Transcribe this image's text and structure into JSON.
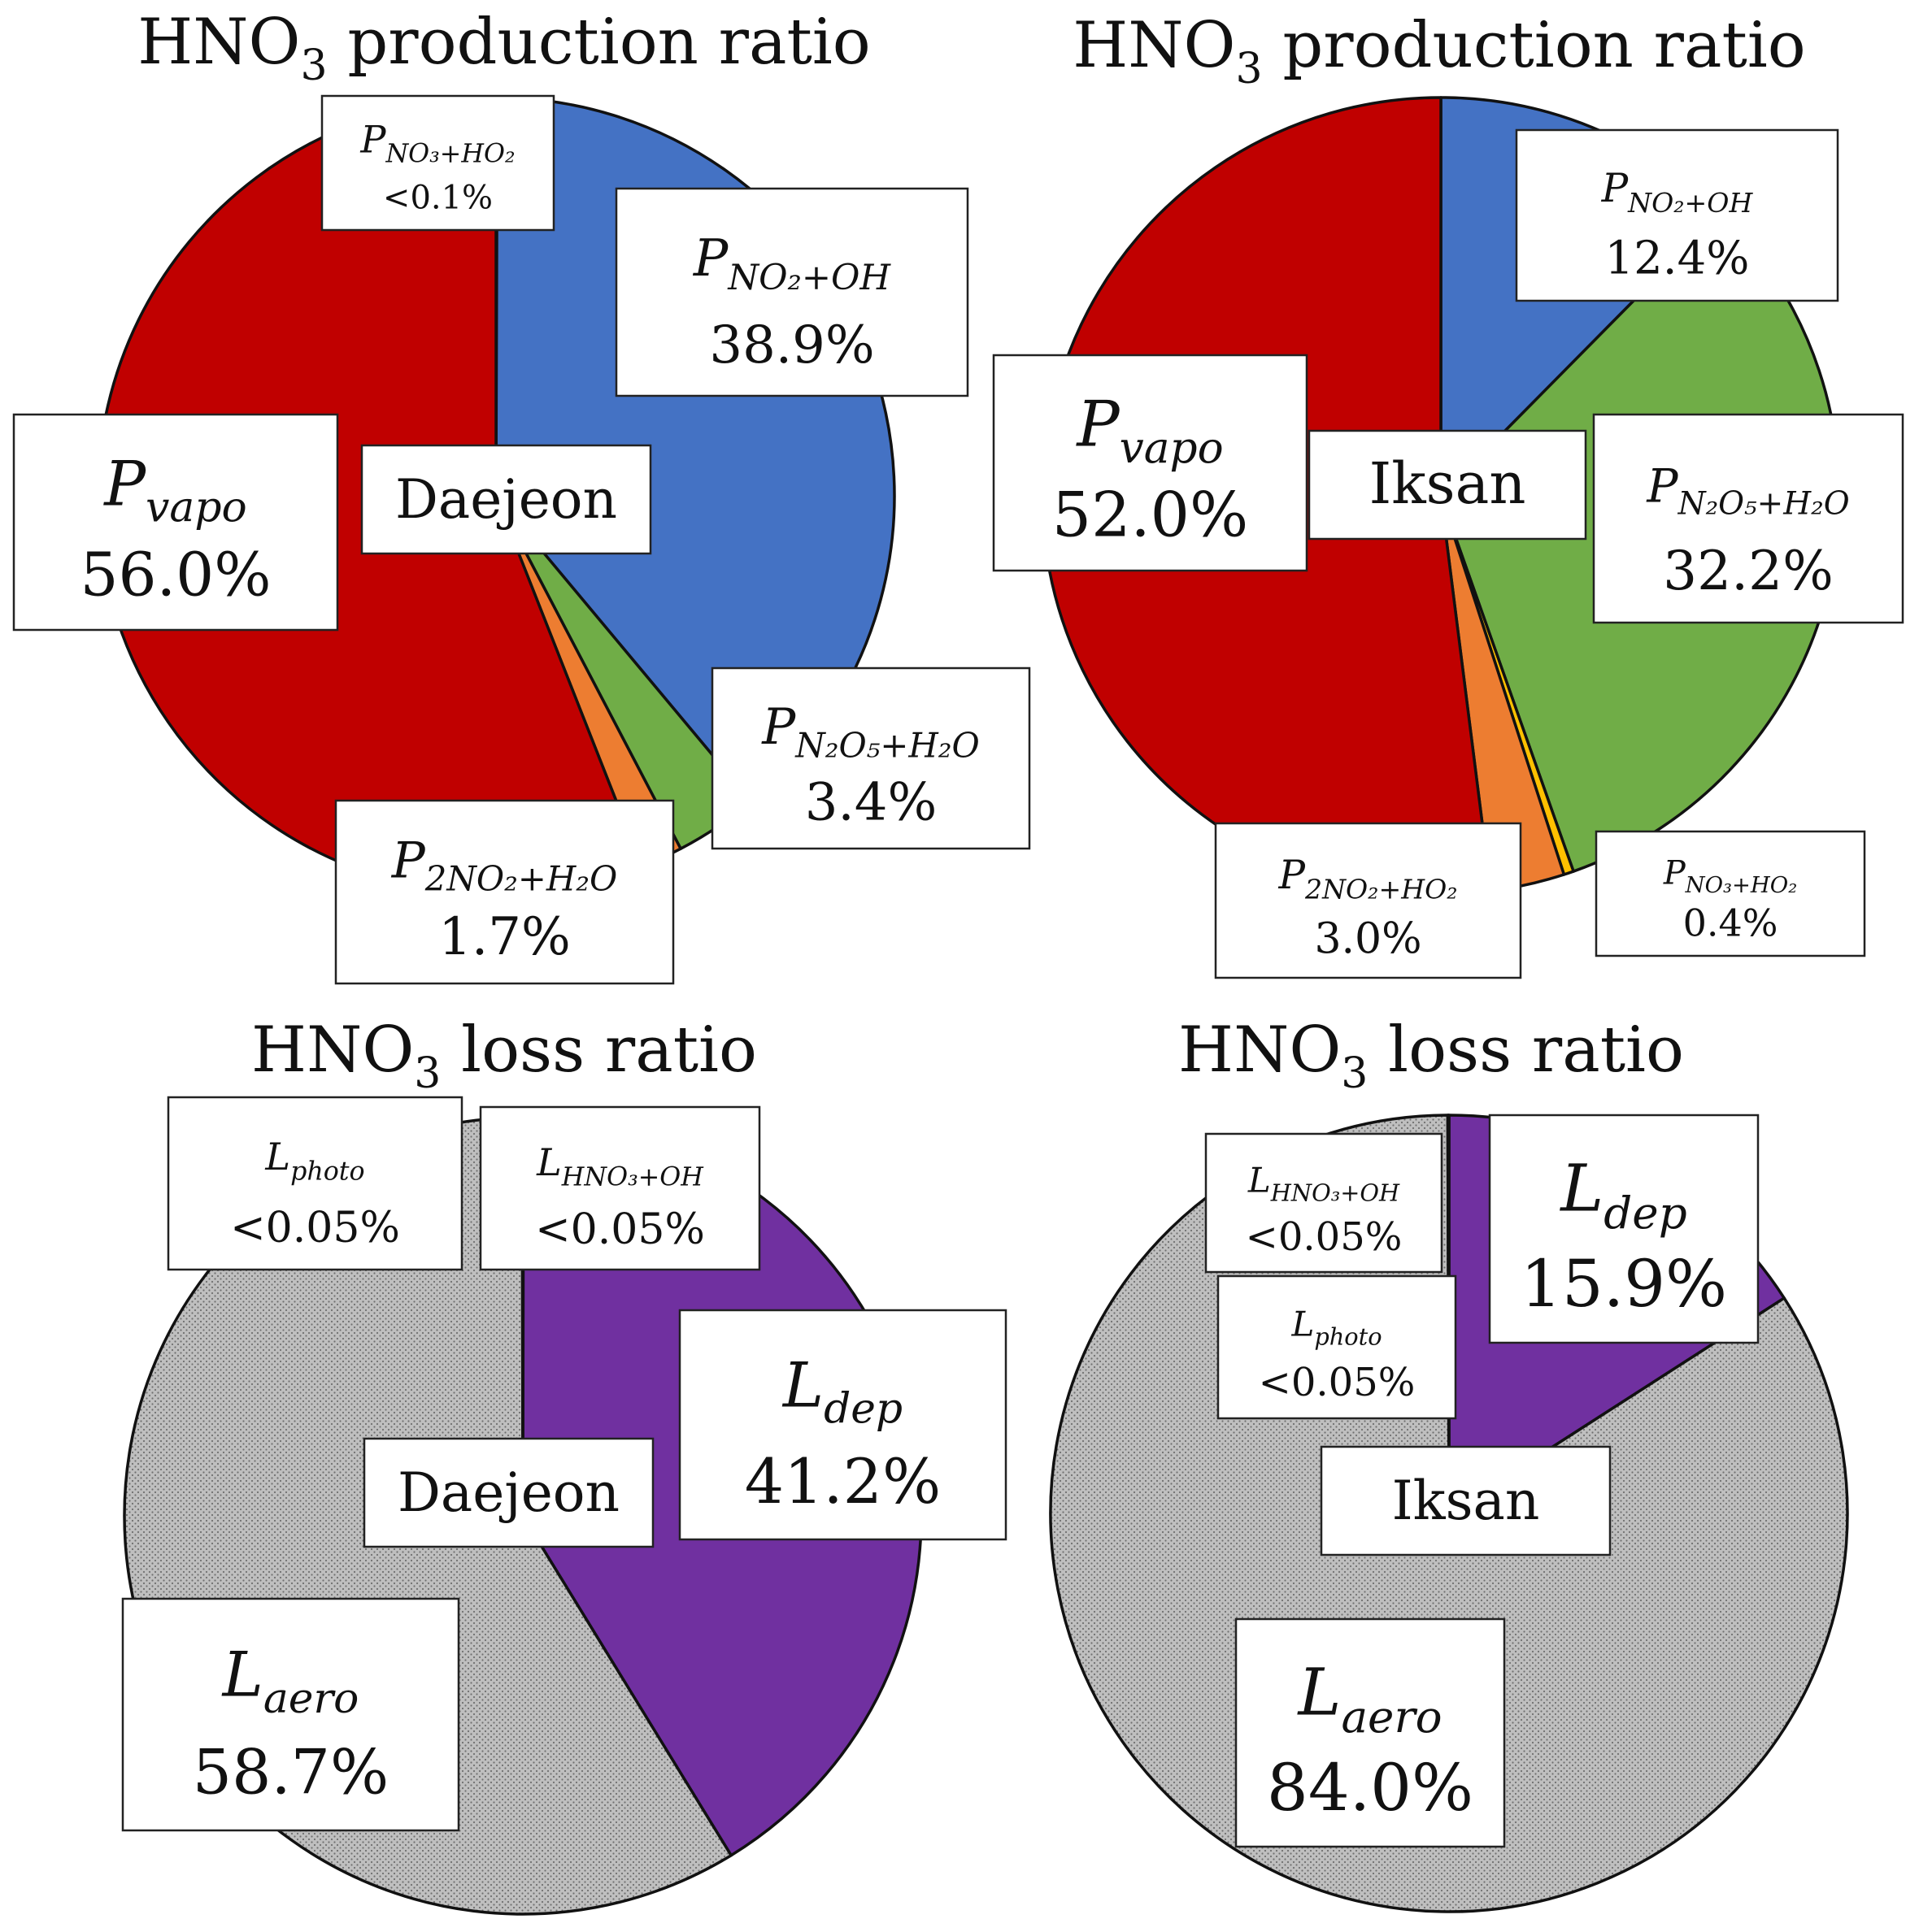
{
  "colors": {
    "vapo": "#C00000",
    "no2_oh": "#4472C4",
    "n2o5_h2o": "#70AD47",
    "2no2_h2o": "#ED7D31",
    "no3_ho2": "#FFC000",
    "dep": "#7030A0",
    "aero": "#BFBFBF",
    "outline": "#111111"
  },
  "chart_data": [
    {
      "id": "prod-daejeon",
      "type": "pie",
      "title": "HNO",
      "title_sub": "3",
      "title_rest": " production ratio",
      "site": "Daejeon",
      "slices": [
        {
          "key": "no3_ho2",
          "label_main": "P",
          "label_sub": "NO₃+HO₂",
          "value_text": "<0.1%",
          "value": 0.05,
          "color_key": "no3_ho2"
        },
        {
          "key": "no2_oh",
          "label_main": "P",
          "label_sub": "NO₂+OH",
          "value_text": "38.9%",
          "value": 38.9,
          "color_key": "no2_oh"
        },
        {
          "key": "n2o5_h2o",
          "label_main": "P",
          "label_sub": "N₂O₅+H₂O",
          "value_text": "3.4%",
          "value": 3.4,
          "color_key": "n2o5_h2o"
        },
        {
          "key": "2no2_h2o",
          "label_main": "P",
          "label_sub": "2NO₂+H₂O",
          "value_text": "1.7%",
          "value": 1.7,
          "color_key": "2no2_h2o"
        },
        {
          "key": "vapo",
          "label_main": "P",
          "label_sub": "vapo",
          "value_text": "56.0%",
          "value": 56.0,
          "color_key": "vapo"
        }
      ]
    },
    {
      "id": "prod-iksan",
      "type": "pie",
      "title": "HNO",
      "title_sub": "3",
      "title_rest": " production ratio",
      "site": "Iksan",
      "slices": [
        {
          "key": "no2_oh",
          "label_main": "P",
          "label_sub": "NO₂+OH",
          "value_text": "12.4%",
          "value": 12.4,
          "color_key": "no2_oh"
        },
        {
          "key": "n2o5_h2o",
          "label_main": "P",
          "label_sub": "N₂O₅+H₂O",
          "value_text": "32.2%",
          "value": 32.2,
          "color_key": "n2o5_h2o"
        },
        {
          "key": "no3_ho2",
          "label_main": "P",
          "label_sub": "NO₃+HO₂",
          "value_text": "0.4%",
          "value": 0.4,
          "color_key": "no3_ho2"
        },
        {
          "key": "2no2_ho2",
          "label_main": "P",
          "label_sub": "2NO₂+HO₂",
          "value_text": "3.0%",
          "value": 3.0,
          "color_key": "2no2_h2o"
        },
        {
          "key": "vapo",
          "label_main": "P",
          "label_sub": "vapo",
          "value_text": "52.0%",
          "value": 52.0,
          "color_key": "vapo"
        }
      ]
    },
    {
      "id": "loss-daejeon",
      "type": "pie",
      "title": "HNO",
      "title_sub": "3",
      "title_rest": " loss ratio",
      "site": "Daejeon",
      "slices": [
        {
          "key": "hno3_oh",
          "label_main": "L",
          "label_sub": "HNO₃+OH",
          "value_text": "<0.05%",
          "value": 0.025,
          "color_key": "dep"
        },
        {
          "key": "dep",
          "label_main": "L",
          "label_sub": "dep",
          "value_text": "41.2%",
          "value": 41.2,
          "color_key": "dep"
        },
        {
          "key": "aero",
          "label_main": "L",
          "label_sub": "aero",
          "value_text": "58.7%",
          "value": 58.7,
          "color_key": "aero"
        },
        {
          "key": "photo",
          "label_main": "L",
          "label_sub": "photo",
          "value_text": "<0.05%",
          "value": 0.025,
          "color_key": "aero"
        }
      ]
    },
    {
      "id": "loss-iksan",
      "type": "pie",
      "title": "HNO",
      "title_sub": "3",
      "title_rest": " loss ratio",
      "site": "Iksan",
      "slices": [
        {
          "key": "dep",
          "label_main": "L",
          "label_sub": "dep",
          "value_text": "15.9%",
          "value": 15.9,
          "color_key": "dep"
        },
        {
          "key": "aero",
          "label_main": "L",
          "label_sub": "aero",
          "value_text": "84.0%",
          "value": 84.0,
          "color_key": "aero"
        },
        {
          "key": "photo",
          "label_main": "L",
          "label_sub": "photo",
          "value_text": "<0.05%",
          "value": 0.025,
          "color_key": "aero"
        },
        {
          "key": "hno3_oh",
          "label_main": "L",
          "label_sub": "HNO₃+OH",
          "value_text": "<0.05%",
          "value": 0.025,
          "color_key": "dep"
        }
      ]
    }
  ]
}
